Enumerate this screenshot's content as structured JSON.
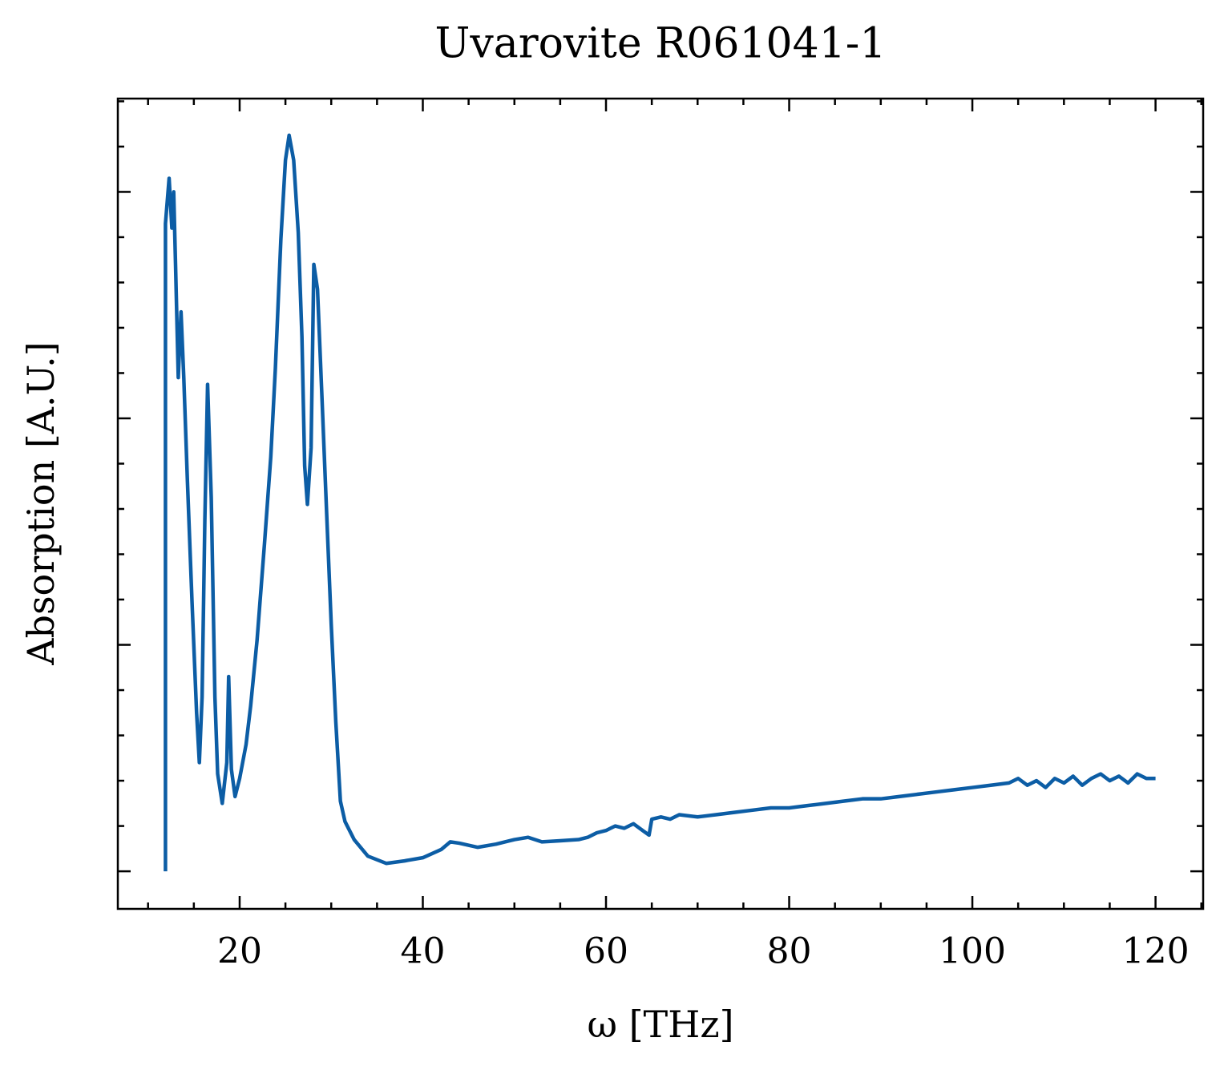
{
  "chart_data": {
    "type": "line",
    "title": "Uvarovite R061041-1",
    "xlabel": "ω [THz]",
    "ylabel": "Absorption [A.U.]",
    "color": "#0C5DA5",
    "x": [
      11.9,
      11.9,
      12.3,
      12.6,
      12.8,
      13.0,
      13.3,
      13.6,
      13.9,
      14.3,
      14.8,
      15.3,
      15.6,
      15.9,
      16.2,
      16.5,
      16.9,
      17.3,
      17.6,
      18.1,
      18.6,
      18.8,
      19.1,
      19.5,
      20.0,
      20.7,
      21.2,
      21.9,
      22.7,
      23.4,
      23.9,
      24.5,
      25.0,
      25.4,
      25.9,
      26.4,
      26.8,
      27.1,
      27.4,
      27.8,
      28.1,
      28.5,
      29.0,
      29.5,
      30.0,
      30.5,
      31.0,
      31.5,
      32.5,
      34,
      36,
      38,
      40,
      42,
      43,
      44,
      46,
      48,
      50,
      51.5,
      53,
      55,
      57,
      58,
      59,
      60,
      61,
      62,
      63,
      64,
      64.7,
      65,
      66,
      67,
      68,
      70,
      72,
      74,
      76,
      78,
      80,
      82,
      84,
      86,
      88,
      90,
      92,
      94,
      96,
      98,
      100,
      102,
      104,
      105,
      106,
      107,
      108,
      109,
      110,
      111,
      112,
      113,
      114,
      115,
      116,
      117,
      118,
      119,
      120
    ],
    "values": [
      0,
      2.86,
      3.06,
      2.84,
      3.0,
      2.68,
      2.18,
      2.47,
      2.18,
      1.72,
      1.19,
      0.7,
      0.48,
      0.77,
      1.55,
      2.15,
      1.65,
      0.77,
      0.43,
      0.3,
      0.48,
      0.86,
      0.45,
      0.33,
      0.41,
      0.56,
      0.73,
      1.02,
      1.44,
      1.83,
      2.22,
      2.79,
      3.14,
      3.25,
      3.14,
      2.82,
      2.36,
      1.79,
      1.62,
      1.87,
      2.68,
      2.57,
      2.08,
      1.58,
      1.09,
      0.66,
      0.31,
      0.22,
      0.14,
      0.067,
      0.035,
      0.046,
      0.06,
      0.096,
      0.13,
      0.124,
      0.106,
      0.12,
      0.14,
      0.15,
      0.13,
      0.135,
      0.14,
      0.15,
      0.17,
      0.18,
      0.2,
      0.19,
      0.21,
      0.18,
      0.16,
      0.23,
      0.24,
      0.23,
      0.25,
      0.24,
      0.25,
      0.26,
      0.27,
      0.28,
      0.28,
      0.29,
      0.3,
      0.31,
      0.32,
      0.32,
      0.33,
      0.34,
      0.35,
      0.36,
      0.37,
      0.38,
      0.39,
      0.41,
      0.38,
      0.4,
      0.37,
      0.41,
      0.39,
      0.42,
      0.38,
      0.41,
      0.43,
      0.4,
      0.42,
      0.39,
      0.43,
      0.41,
      0.41
    ],
    "xlim": [
      6.7,
      125.2
    ],
    "ylim": [
      -0.166,
      3.412
    ],
    "xticks": [
      20,
      40,
      60,
      80,
      100,
      120
    ],
    "xticks_minor": [
      10,
      15,
      25,
      30,
      35,
      45,
      50,
      55,
      65,
      70,
      75,
      85,
      90,
      95,
      105,
      110,
      115,
      125
    ],
    "yticks": [
      0,
      1,
      2,
      3
    ],
    "yticks_minor": [
      0.2,
      0.4,
      0.6,
      0.8,
      1.2,
      1.4,
      1.6,
      1.8,
      2.2,
      2.4,
      2.6,
      2.8,
      3.2,
      3.4
    ],
    "ytick_labels": false,
    "grid": false
  }
}
